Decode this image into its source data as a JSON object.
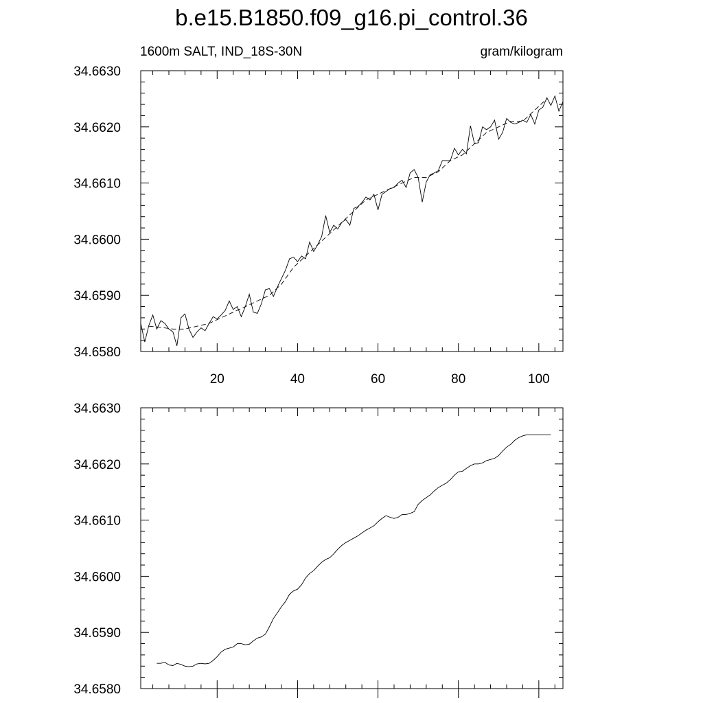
{
  "header": {
    "title": "b.e15.B1850.f09_g16.pi_control.36",
    "left_label": "1600m SALT, IND_18S-30N",
    "right_label": "gram/kilogram"
  },
  "chart_data": [
    {
      "type": "line",
      "panel": "top",
      "title": "",
      "xlabel": "",
      "ylabel": "",
      "xlim": [
        1,
        106
      ],
      "ylim": [
        34.658,
        34.663
      ],
      "x_ticks": [
        20,
        40,
        60,
        80,
        100
      ],
      "x_tick_labels": [
        "20",
        "40",
        "60",
        "80",
        "100"
      ],
      "y_ticks": [
        34.658,
        34.659,
        34.66,
        34.661,
        34.662,
        34.663
      ],
      "y_tick_labels": [
        "34.6580",
        "34.6590",
        "34.6600",
        "34.6610",
        "34.6620",
        "34.6630"
      ],
      "grid": false,
      "series": [
        {
          "style": "solid",
          "x": [
            1,
            2,
            3,
            4,
            5,
            6,
            7,
            8,
            9,
            10,
            11,
            12,
            13,
            14,
            15,
            16,
            17,
            18,
            19,
            20,
            21,
            22,
            23,
            24,
            25,
            26,
            27,
            28,
            29,
            30,
            31,
            32,
            33,
            34,
            35,
            36,
            37,
            38,
            39,
            40,
            41,
            42,
            43,
            44,
            45,
            46,
            47,
            48,
            49,
            50,
            51,
            52,
            53,
            54,
            55,
            56,
            57,
            58,
            59,
            60,
            61,
            62,
            63,
            64,
            65,
            66,
            67,
            68,
            69,
            70,
            71,
            72,
            73,
            74,
            75,
            76,
            77,
            78,
            79,
            80,
            81,
            82,
            83,
            84,
            85,
            86,
            87,
            88,
            89,
            90,
            91,
            92,
            93,
            94,
            95,
            96,
            97,
            98,
            99,
            100,
            101,
            102,
            103,
            104,
            105,
            106
          ],
          "values": [
            34.6585,
            34.65817,
            34.65846,
            34.65865,
            34.6584,
            34.65855,
            34.6585,
            34.6584,
            34.65835,
            34.6581,
            34.6586,
            34.65867,
            34.6584,
            34.65825,
            34.65835,
            34.65842,
            34.65837,
            34.6585,
            34.65862,
            34.65858,
            34.65865,
            34.65873,
            34.6589,
            34.65875,
            34.6588,
            34.65862,
            34.6588,
            34.65902,
            34.6587,
            34.65868,
            34.65885,
            34.6591,
            34.65912,
            34.65898,
            34.65915,
            34.6593,
            34.65945,
            34.65965,
            34.65968,
            34.6596,
            34.6597,
            34.65965,
            34.65995,
            34.65978,
            34.6599,
            34.66005,
            34.66042,
            34.66012,
            34.66025,
            34.66018,
            34.6603,
            34.66035,
            34.66025,
            34.66055,
            34.66058,
            34.66065,
            34.66075,
            34.6607,
            34.6608,
            34.66052,
            34.6608,
            34.66085,
            34.6609,
            34.66092,
            34.661,
            34.66105,
            34.66092,
            34.66118,
            34.66124,
            34.6611,
            34.66066,
            34.66102,
            34.66115,
            34.66118,
            34.66122,
            34.6614,
            34.6614,
            34.6614,
            34.66162,
            34.6615,
            34.6616,
            34.66152,
            34.66202,
            34.6617,
            34.66172,
            34.662,
            34.66195,
            34.662,
            34.66212,
            34.66178,
            34.6619,
            34.66215,
            34.66208,
            34.66205,
            34.66208,
            34.66212,
            34.66208,
            34.66222,
            34.66205,
            34.6623,
            34.66235,
            34.66252,
            34.66238,
            34.66255,
            34.66228,
            34.66245
          ]
        },
        {
          "style": "dashed",
          "x": [
            3,
            6,
            9,
            12,
            15,
            18,
            21,
            24,
            27,
            30,
            33,
            36,
            39,
            42,
            45,
            48,
            51,
            54,
            57,
            60,
            63,
            66,
            69,
            72,
            75,
            78,
            81,
            84,
            87,
            90,
            93,
            96,
            99,
            102
          ],
          "values": [
            34.65845,
            34.65843,
            34.6584,
            34.6584,
            34.65845,
            34.6585,
            34.6586,
            34.6587,
            34.6588,
            34.6589,
            34.659,
            34.6592,
            34.6595,
            34.6597,
            34.6599,
            34.6601,
            34.6603,
            34.6605,
            34.6607,
            34.6608,
            34.6609,
            34.661,
            34.6611,
            34.6611,
            34.6612,
            34.6614,
            34.6615,
            34.6617,
            34.6619,
            34.662,
            34.6621,
            34.6621,
            34.6623,
            34.6625
          ]
        }
      ]
    },
    {
      "type": "line",
      "panel": "bottom",
      "title": "",
      "xlabel": "",
      "ylabel": "",
      "xlim": [
        1,
        106
      ],
      "ylim": [
        34.658,
        34.663
      ],
      "x_ticks": [
        20,
        40,
        60,
        80,
        100
      ],
      "y_ticks": [
        34.658,
        34.659,
        34.66,
        34.661,
        34.662,
        34.663
      ],
      "y_tick_labels": [
        "34.6580",
        "34.6590",
        "34.6600",
        "34.6610",
        "34.6620",
        "34.6630"
      ],
      "grid": false,
      "series": [
        {
          "style": "solid",
          "x": [
            5,
            6,
            7,
            8,
            9,
            10,
            11,
            12,
            13,
            14,
            15,
            16,
            17,
            18,
            19,
            20,
            21,
            22,
            23,
            24,
            25,
            26,
            27,
            28,
            29,
            30,
            31,
            32,
            33,
            34,
            35,
            36,
            37,
            38,
            39,
            40,
            41,
            42,
            43,
            44,
            45,
            46,
            47,
            48,
            49,
            50,
            51,
            52,
            53,
            54,
            55,
            56,
            57,
            58,
            59,
            60,
            61,
            62,
            63,
            64,
            65,
            66,
            67,
            68,
            69,
            70,
            71,
            72,
            73,
            74,
            75,
            76,
            77,
            78,
            79,
            80,
            81,
            82,
            83,
            84,
            85,
            86,
            87,
            88,
            89,
            90,
            91,
            92,
            93,
            94,
            95,
            96,
            97,
            98,
            99,
            100,
            101,
            102,
            103
          ],
          "values": [
            34.65845,
            34.65845,
            34.65847,
            34.65842,
            34.65841,
            34.65845,
            34.65843,
            34.6584,
            34.65839,
            34.6584,
            34.65844,
            34.65845,
            34.65844,
            34.65845,
            34.6585,
            34.65857,
            34.65865,
            34.6587,
            34.65872,
            34.65874,
            34.6588,
            34.6588,
            34.65878,
            34.65879,
            34.65885,
            34.6589,
            34.65892,
            34.65897,
            34.6591,
            34.65925,
            34.65935,
            34.65946,
            34.65955,
            34.65968,
            34.65974,
            34.65977,
            34.65985,
            34.65997,
            34.66005,
            34.6601,
            34.66018,
            34.66025,
            34.6603,
            34.66033,
            34.6604,
            34.66048,
            34.66055,
            34.6606,
            34.66064,
            34.66068,
            34.66072,
            34.66077,
            34.66082,
            34.66086,
            34.6609,
            34.66097,
            34.66103,
            34.66108,
            34.66105,
            34.66103,
            34.66105,
            34.6611,
            34.6611,
            34.66112,
            34.66115,
            34.66128,
            34.66135,
            34.6614,
            34.66145,
            34.66152,
            34.66158,
            34.66162,
            34.66166,
            34.66172,
            34.6618,
            34.66186,
            34.66187,
            34.66192,
            34.66197,
            34.662,
            34.662,
            34.66202,
            34.66206,
            34.66208,
            34.6621,
            34.66215,
            34.66223,
            34.6623,
            34.66235,
            34.66242,
            34.66247,
            34.6625,
            34.66252,
            34.66252,
            34.66252,
            34.66252,
            34.66252,
            34.66252,
            34.66252
          ]
        }
      ]
    }
  ]
}
